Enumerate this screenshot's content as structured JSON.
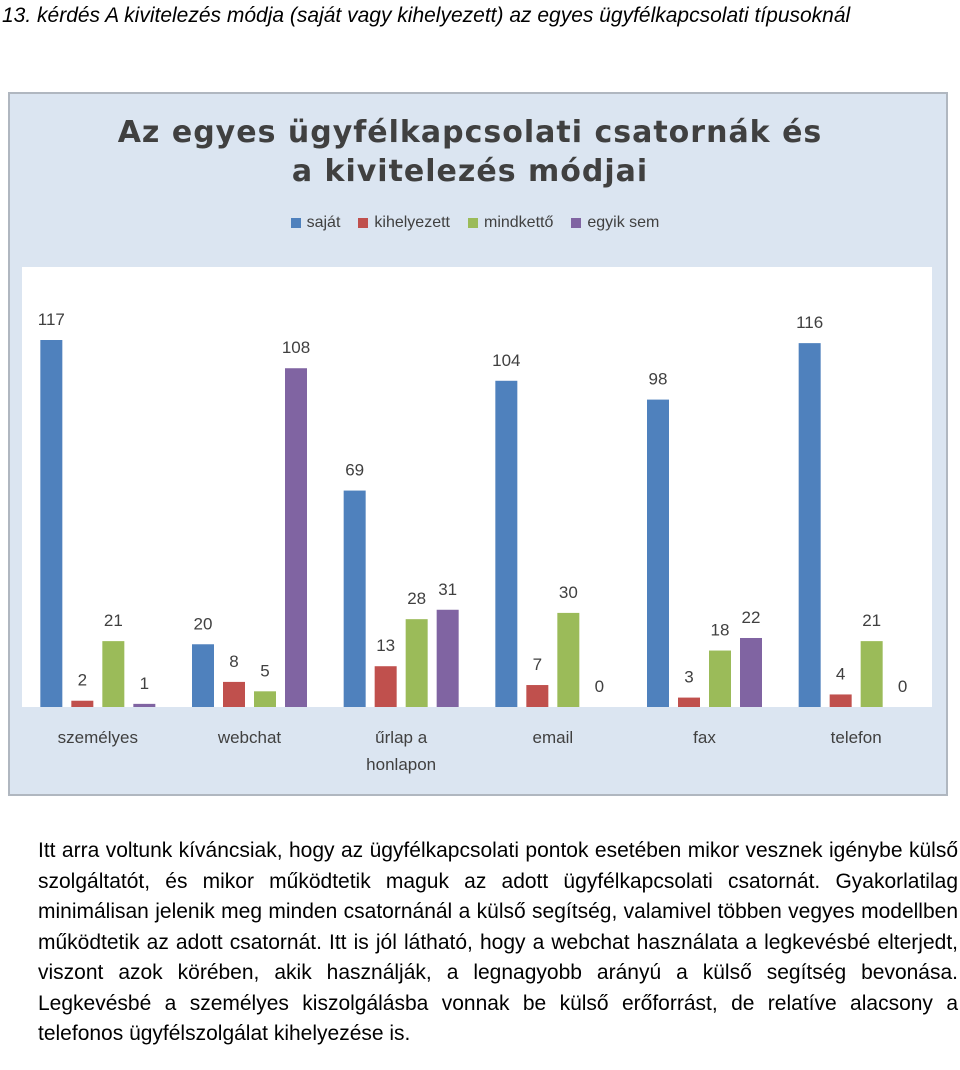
{
  "heading": "13. kérdés A kivitelezés módja (saját vagy kihelyezett) az egyes ügyfélkapcsolati típusoknál",
  "chart_data": {
    "type": "bar",
    "title": "Az egyes ügyfélkapcsolati csatornák és a kivitelezés módjai",
    "categories": [
      "személyes",
      "webchat",
      "űrlap a honlapon",
      "email",
      "fax",
      "telefon"
    ],
    "series": [
      {
        "name": "saját",
        "color": "#4f81bd",
        "values": [
          117,
          20,
          69,
          104,
          98,
          116
        ]
      },
      {
        "name": "kihelyezett",
        "color": "#c0504d",
        "values": [
          2,
          8,
          13,
          7,
          3,
          4
        ]
      },
      {
        "name": "mindkettő",
        "color": "#9bbb59",
        "values": [
          21,
          5,
          28,
          30,
          18,
          21
        ]
      },
      {
        "name": "egyik sem",
        "color": "#8064a2",
        "values": [
          1,
          108,
          31,
          0,
          22,
          0
        ]
      }
    ],
    "legend": "top",
    "grid": false
  },
  "paragraph": "Itt arra voltunk kíváncsiak, hogy az ügyfélkapcsolati pontok esetében mikor vesznek igénybe külső szolgáltatót, és mikor működtetik maguk az adott ügyfélkapcsolati csatornát. Gyakorlatilag minimálisan jelenik meg minden csatornánál a külső segítség, valamivel többen vegyes modellben működtetik az adott csatornát. Itt is jól látható, hogy a webchat használata a legkevésbé elterjedt, viszont azok körében, akik használják, a legnagyobb arányú a külső segítség bevonása. Legkevésbé a személyes kiszolgálásba vonnak be külső erőforrást, de relatíve alacsony a telefonos ügyfélszolgálat kihelyezése is."
}
